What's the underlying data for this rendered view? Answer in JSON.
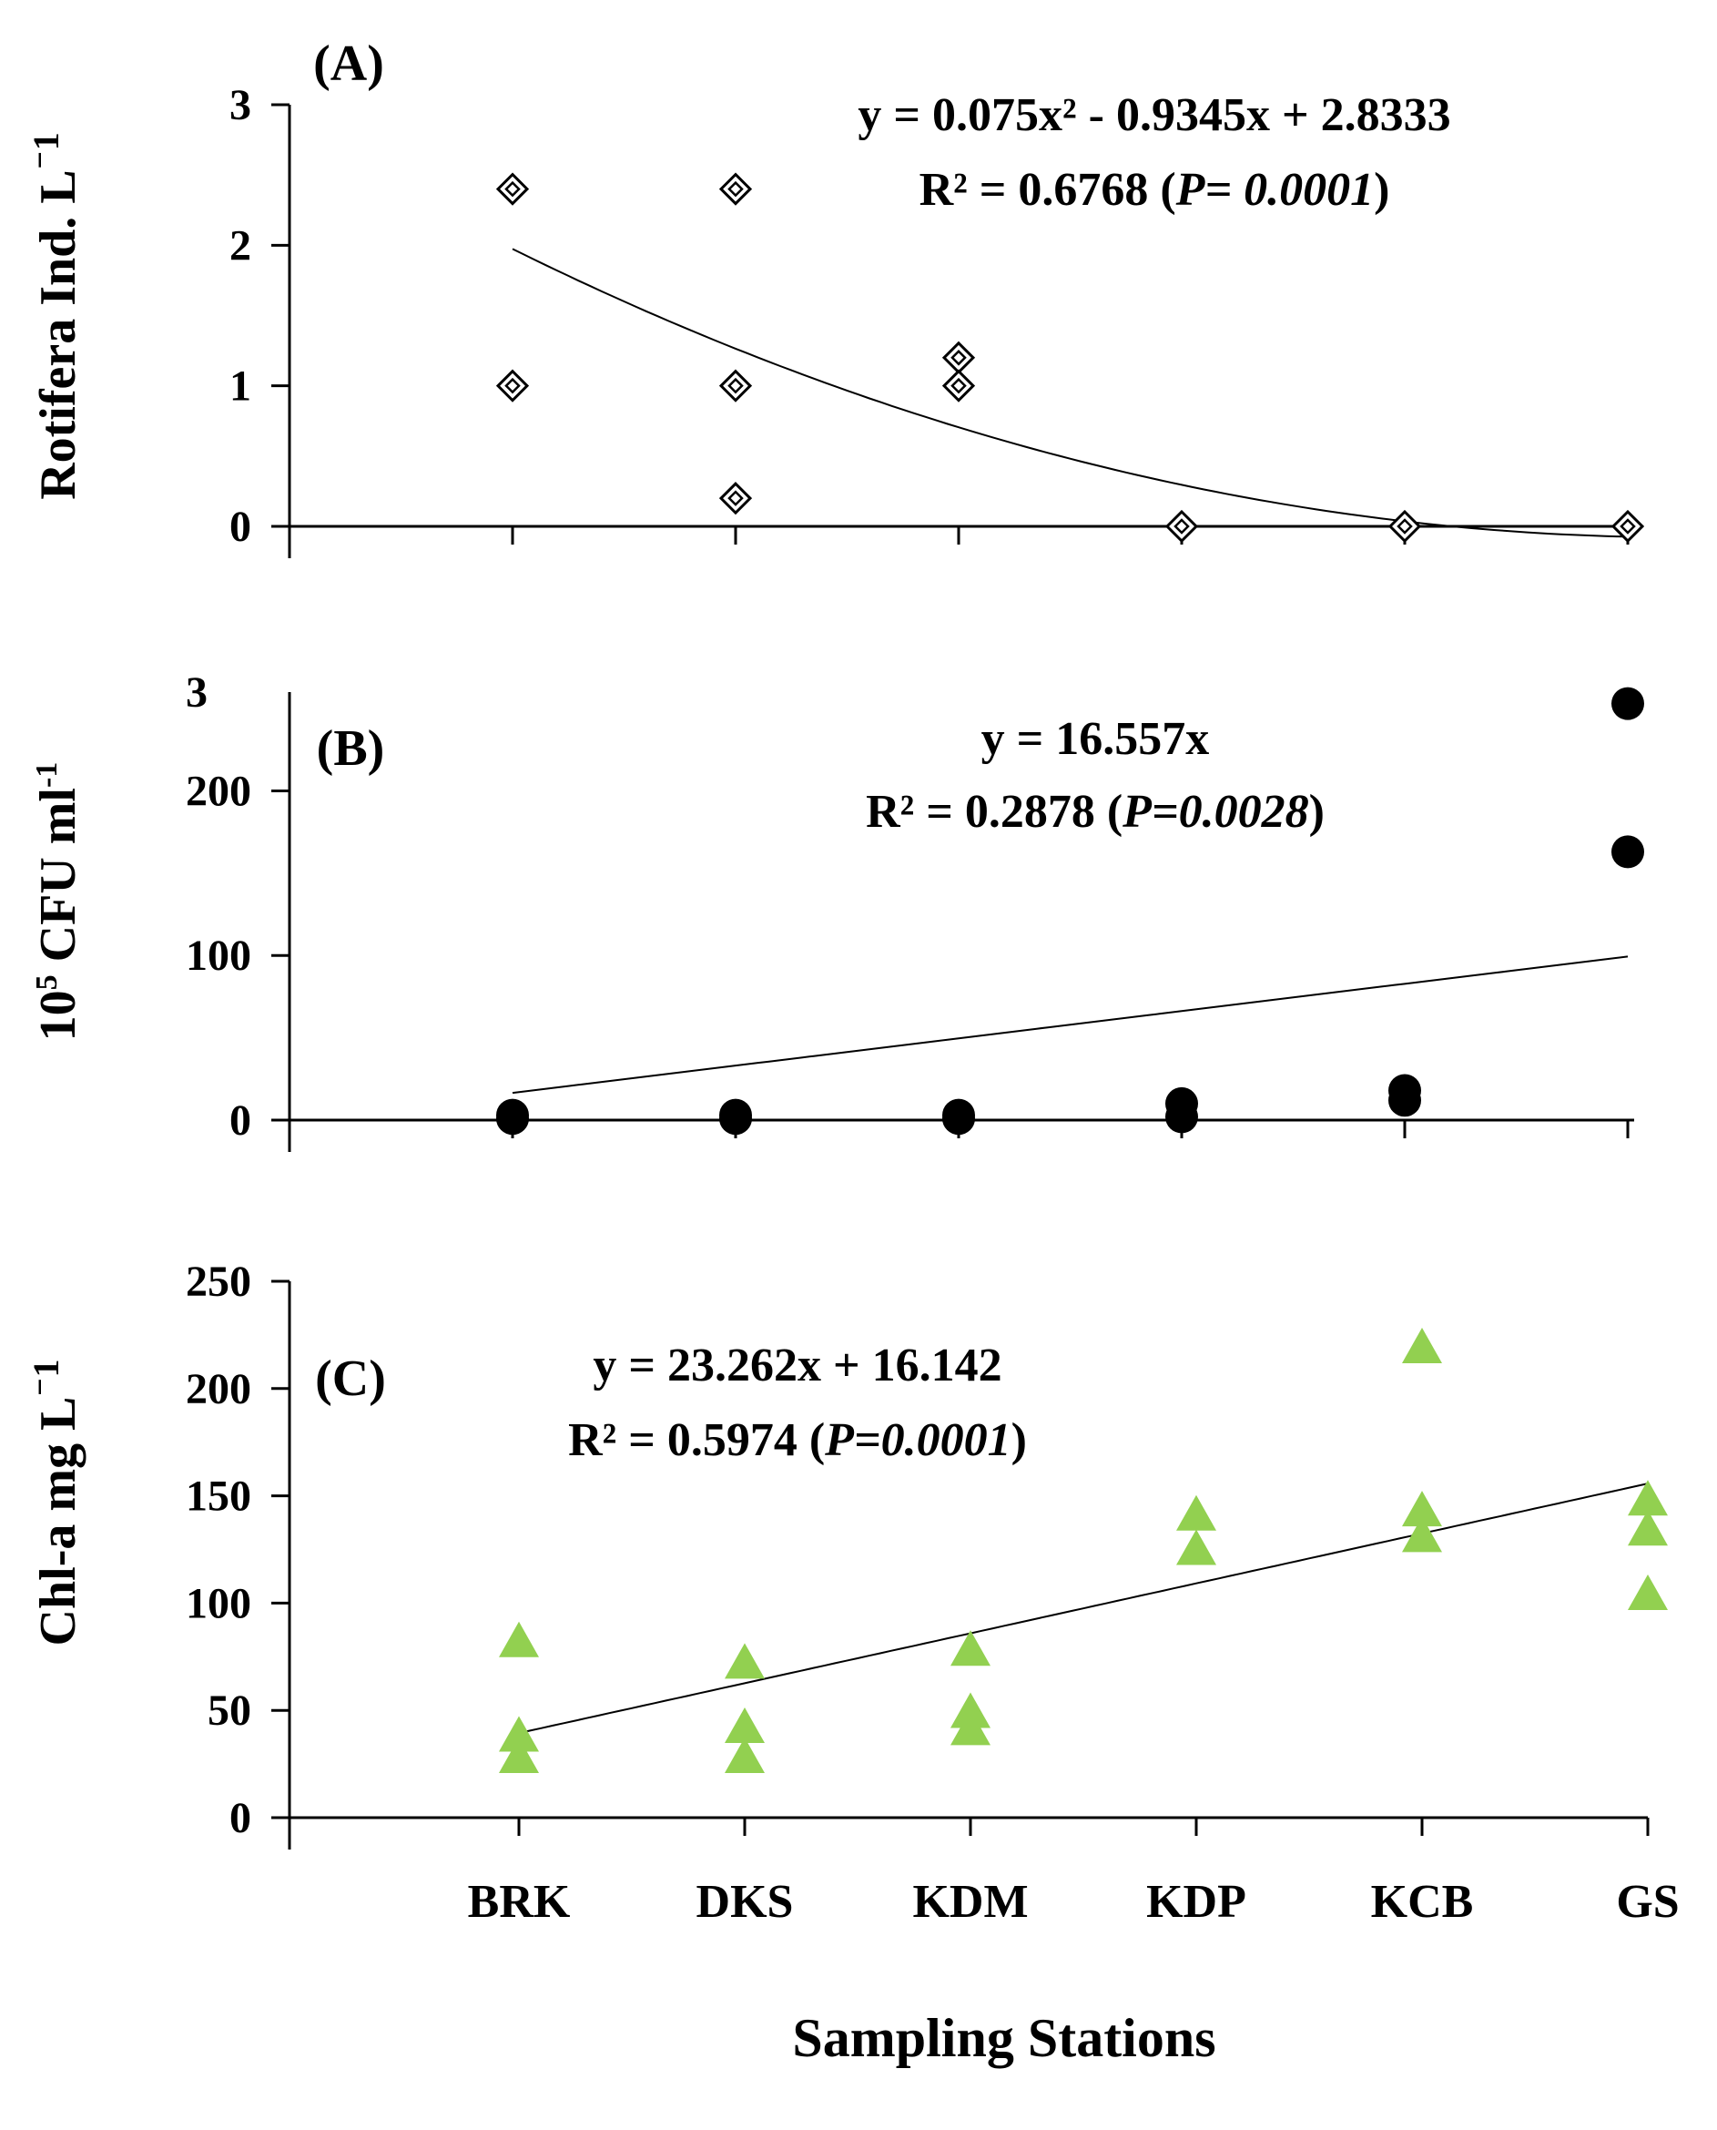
{
  "chart_data": [
    {
      "type": "scatter",
      "panel_label": "(A)",
      "ylabel": "Rotifera Ind. L",
      "ylabel_sup": "⁻1",
      "ylabel_display": "Rotifera Ind. L⁻1",
      "ylim": [
        0,
        3
      ],
      "yticks": [
        0,
        1,
        2,
        3
      ],
      "marker": "open-diamond",
      "marker_color": "#000000",
      "equation": "y = 0.075x² - 0.9345x + 2.8333",
      "r2_prefix": "R² = 0.6768 (",
      "p_symbol": "P",
      "p_value": "= 0.0001",
      "r2_suffix": ")",
      "trendline": {
        "kind": "polynomial",
        "a": 0.075,
        "b": -0.9345,
        "c": 2.8333
      },
      "points": [
        {
          "x": 1,
          "y": 2.4
        },
        {
          "x": 1,
          "y": 1.0
        },
        {
          "x": 2,
          "y": 2.4
        },
        {
          "x": 2,
          "y": 1.0
        },
        {
          "x": 2,
          "y": 0.2
        },
        {
          "x": 3,
          "y": 1.2
        },
        {
          "x": 3,
          "y": 1.0
        },
        {
          "x": 4,
          "y": 0.0
        },
        {
          "x": 5,
          "y": 0.0
        },
        {
          "x": 6,
          "y": 0.0
        }
      ]
    },
    {
      "type": "scatter",
      "panel_label": "(B)",
      "ylabel_base": "10",
      "ylabel_sup": "5",
      "ylabel_rest": " CFU ml",
      "ylabel_sup2": "-1",
      "ylabel_display": "10⁵ CFU ml⁻1",
      "ylim": [
        0,
        260
      ],
      "yticks": [
        0,
        100,
        200
      ],
      "top_label": "3",
      "marker": "filled-circle",
      "marker_color": "#000000",
      "equation": "y = 16.557x",
      "r2_prefix": "R² = 0.2878 (",
      "p_symbol": "P",
      "p_value": "=0.0028",
      "r2_suffix": ")",
      "trendline": {
        "kind": "linear",
        "slope": 16.557,
        "intercept": 0
      },
      "points": [
        {
          "x": 1,
          "y": 1
        },
        {
          "x": 1,
          "y": 3
        },
        {
          "x": 2,
          "y": 1
        },
        {
          "x": 2,
          "y": 3
        },
        {
          "x": 3,
          "y": 1
        },
        {
          "x": 3,
          "y": 3
        },
        {
          "x": 4,
          "y": 2
        },
        {
          "x": 4,
          "y": 10
        },
        {
          "x": 5,
          "y": 12
        },
        {
          "x": 5,
          "y": 18
        },
        {
          "x": 6,
          "y": 163
        },
        {
          "x": 6,
          "y": 253
        }
      ]
    },
    {
      "type": "scatter",
      "panel_label": "(C)",
      "ylabel": "Chl-a mg L",
      "ylabel_sup": "⁻1",
      "ylabel_display": "Chl-a mg L⁻1",
      "ylim": [
        0,
        250
      ],
      "yticks": [
        0,
        50,
        100,
        150,
        200,
        250
      ],
      "marker": "filled-triangle",
      "marker_color": "#92D050",
      "equation": "y = 23.262x + 16.142",
      "r2_prefix": "R² = 0.5974 (",
      "p_symbol": "P",
      "p_value": "=0.0001",
      "r2_suffix": ")",
      "trendline": {
        "kind": "linear",
        "slope": 23.262,
        "intercept": 16.142
      },
      "points": [
        {
          "x": 1,
          "y": 82
        },
        {
          "x": 1,
          "y": 38
        },
        {
          "x": 1,
          "y": 28
        },
        {
          "x": 2,
          "y": 72
        },
        {
          "x": 2,
          "y": 42
        },
        {
          "x": 2,
          "y": 28
        },
        {
          "x": 3,
          "y": 78
        },
        {
          "x": 3,
          "y": 49
        },
        {
          "x": 3,
          "y": 41
        },
        {
          "x": 4,
          "y": 141
        },
        {
          "x": 4,
          "y": 125
        },
        {
          "x": 5,
          "y": 219
        },
        {
          "x": 5,
          "y": 143
        },
        {
          "x": 5,
          "y": 131
        },
        {
          "x": 6,
          "y": 148
        },
        {
          "x": 6,
          "y": 134
        },
        {
          "x": 6,
          "y": 104
        }
      ]
    }
  ],
  "categories": [
    "BRK",
    "DKS",
    "KDM",
    "KDP",
    "KCB",
    "GS"
  ],
  "xlabel": "Sampling Stations",
  "colors": {
    "axis": "#000000",
    "marker_green": "#92D050"
  }
}
